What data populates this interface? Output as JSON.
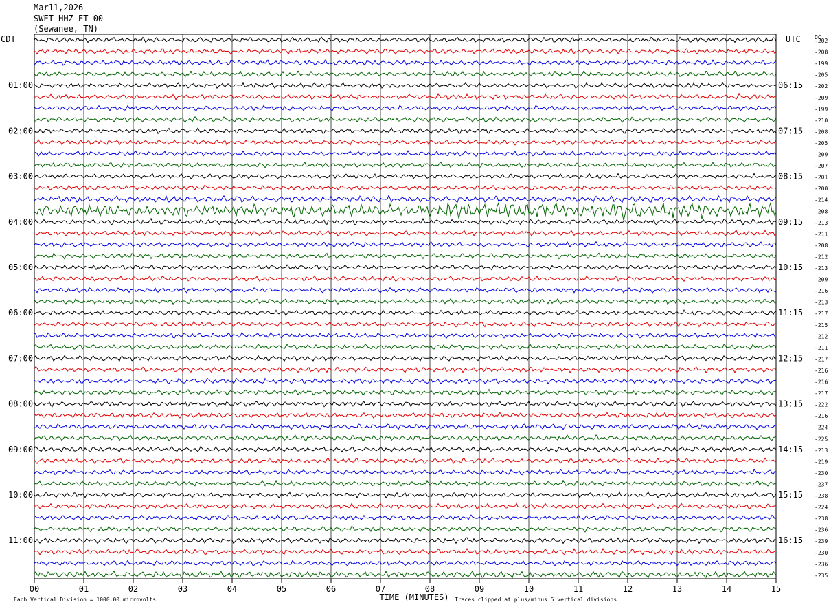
{
  "header": {
    "date": "Mar11,2026",
    "station": "SWET HHZ ET 00",
    "location": "(Sewanee, TN)"
  },
  "chart_data": {
    "type": "line",
    "title": "SWET HHZ ET 00",
    "left_zone_label": "CDT",
    "right_zone_label": "UTC",
    "dc_label": "DC",
    "xlabel": "TIME (MINUTES)",
    "xlim": [
      0,
      15
    ],
    "x_ticks": [
      "00",
      "01",
      "02",
      "03",
      "04",
      "05",
      "06",
      "07",
      "08",
      "09",
      "10",
      "11",
      "12",
      "13",
      "14",
      "15"
    ],
    "trace_colors": [
      "#000000",
      "#e00000",
      "#0000e0",
      "#006400"
    ],
    "trace_count": 48,
    "minutes_per_trace": 15,
    "cdt_hour_labels": [
      "01:00",
      "02:00",
      "03:00",
      "04:00",
      "05:00",
      "06:00",
      "07:00",
      "08:00",
      "09:00",
      "10:00",
      "11:00"
    ],
    "utc_hour_labels": [
      "06:15",
      "07:15",
      "08:15",
      "09:15",
      "10:15",
      "11:15",
      "12:15",
      "13:15",
      "14:15",
      "15:15",
      "16:15"
    ],
    "hour_label_trace_indices": [
      4,
      8,
      12,
      16,
      20,
      24,
      28,
      32,
      36,
      40,
      44
    ],
    "dc_offsets": [
      -202,
      -208,
      -199,
      -205,
      -202,
      -209,
      -199,
      -210,
      -208,
      -205,
      -209,
      -207,
      -201,
      -200,
      -214,
      -208,
      -213,
      -211,
      -208,
      -212,
      -213,
      -209,
      -216,
      -213,
      -217,
      -215,
      -212,
      -211,
      -217,
      -216,
      -216,
      -217,
      -222,
      -216,
      -224,
      -225,
      -213,
      -219,
      -230,
      -237,
      -238,
      -224,
      -238,
      -236,
      -239,
      -230,
      -236,
      -235
    ],
    "trace_amplitudes": [
      1,
      1,
      1,
      1,
      1,
      1,
      1,
      1,
      1,
      1,
      1,
      1,
      1,
      1,
      1.3,
      2.4,
      1.1,
      1,
      1,
      1,
      1,
      1,
      1,
      1,
      1,
      1,
      1,
      1,
      1,
      1,
      1,
      1,
      1,
      1,
      1,
      1,
      1,
      1,
      1,
      1,
      1,
      1,
      1,
      1,
      1.1,
      1.1,
      1,
      1.3
    ],
    "footnote_left": "Each Vertical Division = 1000.00 microvolts",
    "footnote_right": "Traces clipped at plus/minus 5 vertical divisions"
  }
}
